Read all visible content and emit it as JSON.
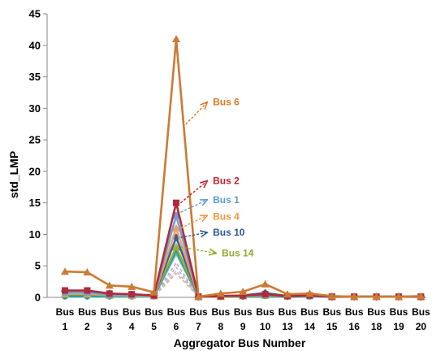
{
  "chart_data": {
    "type": "line",
    "title": "",
    "xlabel": "Aggregator Bus Number",
    "ylabel": "std_LMP",
    "ylim": [
      0,
      45
    ],
    "yticks": [
      0,
      5,
      10,
      15,
      20,
      25,
      30,
      35,
      40,
      45
    ],
    "grid": false,
    "categories": [
      {
        "top": "Bus",
        "bottom": "1"
      },
      {
        "top": "Bus",
        "bottom": "2"
      },
      {
        "top": "Bus",
        "bottom": "3"
      },
      {
        "top": "Bus",
        "bottom": "4"
      },
      {
        "top": "Bus",
        "bottom": "5"
      },
      {
        "top": "Bus",
        "bottom": "6"
      },
      {
        "top": "Bus",
        "bottom": "7"
      },
      {
        "top": "Bus",
        "bottom": "8"
      },
      {
        "top": "Bus",
        "bottom": "9"
      },
      {
        "top": "Bus",
        "bottom": "10"
      },
      {
        "top": "Bus",
        "bottom": "13"
      },
      {
        "top": "Bus",
        "bottom": "14"
      },
      {
        "top": "Bus",
        "bottom": "15"
      },
      {
        "top": "Bus",
        "bottom": "16"
      },
      {
        "top": "Bus",
        "bottom": "18"
      },
      {
        "top": "Bus",
        "bottom": "19"
      },
      {
        "top": "Bus",
        "bottom": "20"
      }
    ],
    "series": [
      {
        "name": "Bus 6",
        "color": "#cc7a33",
        "dashed": false,
        "marker": "triangle",
        "values": [
          4.1,
          4.0,
          1.9,
          1.7,
          0.8,
          41.0,
          0.1,
          0.6,
          0.9,
          2.1,
          0.5,
          0.6,
          0.2,
          0.1,
          0.1,
          0.1,
          0.2
        ]
      },
      {
        "name": "Bus 2",
        "color": "#b02a38",
        "dashed": false,
        "marker": "square",
        "values": [
          1.1,
          1.1,
          0.6,
          0.5,
          0.3,
          15.0,
          0.1,
          0.2,
          0.3,
          0.5,
          0.2,
          0.3,
          0.1,
          0.1,
          0.1,
          0.1,
          0.1
        ]
      },
      {
        "name": "Bus 1",
        "color": "#6a9fd8",
        "dashed": false,
        "marker": "square",
        "values": [
          0.8,
          0.8,
          0.4,
          0.4,
          0.3,
          13.0,
          0.1,
          0.2,
          0.3,
          0.4,
          0.2,
          0.2,
          0.1,
          0.1,
          0.1,
          0.1,
          0.1
        ]
      },
      {
        "name": "Bus 4",
        "color": "#f0a060",
        "dashed": false,
        "marker": "triangle",
        "values": [
          0.6,
          0.6,
          0.4,
          0.3,
          0.2,
          11.0,
          0.1,
          0.2,
          0.3,
          0.4,
          0.2,
          0.6,
          0.1,
          0.1,
          0.1,
          0.1,
          0.1
        ]
      },
      {
        "name": "Bus 10",
        "color": "#3a5f9a",
        "dashed": false,
        "marker": "diamond",
        "values": [
          1.0,
          1.0,
          0.6,
          0.4,
          0.3,
          9.5,
          0.1,
          0.2,
          0.3,
          0.7,
          0.2,
          0.3,
          0.1,
          0.1,
          0.1,
          0.1,
          0.1
        ]
      },
      {
        "name": "Bus 14",
        "color": "#9aae3a",
        "dashed": false,
        "marker": "triangle",
        "values": [
          0.5,
          0.5,
          0.3,
          0.3,
          0.2,
          8.0,
          0.1,
          0.1,
          0.2,
          0.3,
          0.2,
          0.4,
          0.1,
          0.1,
          0.1,
          0.1,
          0.1
        ]
      },
      {
        "name": "",
        "color": "#2e9a8a",
        "dashed": false,
        "marker": "circle",
        "values": [
          0.2,
          0.2,
          0.2,
          0.2,
          0.2,
          7.5,
          0.1,
          0.1,
          0.1,
          0.2,
          0.1,
          0.2,
          0.1,
          0.1,
          0.1,
          0.1,
          0.1
        ]
      },
      {
        "name": "",
        "color": "#5ab8c8",
        "dashed": false,
        "marker": "circle",
        "values": [
          0.1,
          0.1,
          0.1,
          0.1,
          0.1,
          7.0,
          0.1,
          0.1,
          0.1,
          0.2,
          0.1,
          0.1,
          0.1,
          0.1,
          0.1,
          0.1,
          0.1
        ]
      },
      {
        "name": "",
        "color": "#c8a0c8",
        "dashed": true,
        "marker": "none",
        "values": [
          0.3,
          0.3,
          0.3,
          0.2,
          0.2,
          5.5,
          0.1,
          0.1,
          0.2,
          0.3,
          0.1,
          0.3,
          0.1,
          0.1,
          0.1,
          0.1,
          0.1
        ]
      },
      {
        "name": "",
        "color": "#a8b8d8",
        "dashed": true,
        "marker": "none",
        "values": [
          0.2,
          0.2,
          0.2,
          0.2,
          0.2,
          4.8,
          0.1,
          0.1,
          0.1,
          0.2,
          0.1,
          0.2,
          0.1,
          0.1,
          0.1,
          0.1,
          0.1
        ]
      },
      {
        "name": "",
        "color": "#e8b0a8",
        "dashed": true,
        "marker": "none",
        "values": [
          0.2,
          0.2,
          0.2,
          0.1,
          0.1,
          4.2,
          0.1,
          0.1,
          0.1,
          0.2,
          0.1,
          0.2,
          0.1,
          0.1,
          0.1,
          0.1,
          0.1
        ]
      },
      {
        "name": "",
        "color": "#b8b8b8",
        "dashed": true,
        "marker": "none",
        "values": [
          0.1,
          0.1,
          0.1,
          0.1,
          0.1,
          3.8,
          0.1,
          0.1,
          0.1,
          0.1,
          0.1,
          0.1,
          0.1,
          0.1,
          0.1,
          0.1,
          0.1
        ]
      }
    ],
    "annotations": [
      {
        "text": "Bus 6",
        "color": "#e07820",
        "from": [
          6.3,
          27
        ],
        "to": [
          7.4,
          31
        ],
        "label_at": [
          7.5,
          31
        ]
      },
      {
        "text": "Bus 2",
        "color": "#c0202c",
        "from": [
          6.2,
          15
        ],
        "to": [
          7.4,
          18.5
        ],
        "label_at": [
          7.5,
          18.5
        ]
      },
      {
        "text": "Bus 1",
        "color": "#5b9bd5",
        "from": [
          6.2,
          13.5
        ],
        "to": [
          7.4,
          15.5
        ],
        "label_at": [
          7.5,
          15.5
        ]
      },
      {
        "text": "Bus 4",
        "color": "#f39640",
        "from": [
          6.2,
          11
        ],
        "to": [
          7.4,
          13
        ],
        "label_at": [
          7.5,
          12.8
        ]
      },
      {
        "text": "Bus 10",
        "color": "#2f5597",
        "from": [
          6.2,
          9.5
        ],
        "to": [
          7.4,
          10.3
        ],
        "label_at": [
          7.5,
          10.3
        ]
      },
      {
        "text": "Bus 14",
        "color": "#92a832",
        "from": [
          6.2,
          8
        ],
        "to": [
          7.8,
          7
        ],
        "label_at": [
          7.9,
          7
        ]
      }
    ]
  }
}
